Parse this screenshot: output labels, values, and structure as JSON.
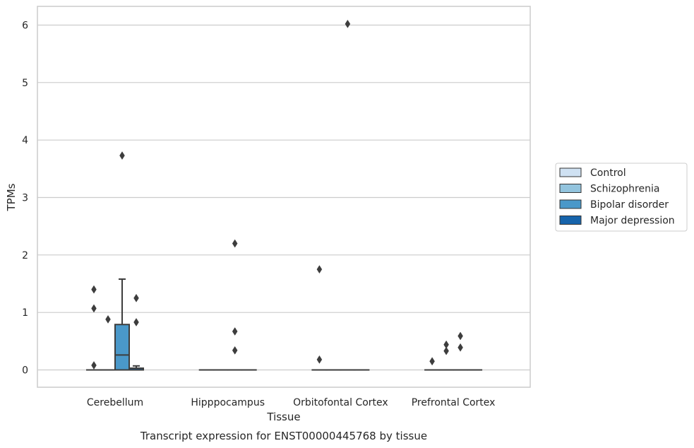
{
  "chart_data": {
    "type": "boxplot",
    "xlabel": "Tissue",
    "ylabel": "TPMs",
    "caption": "Transcript expression for ENST00000445768 by tissue",
    "ylim": [
      -0.3,
      6.33
    ],
    "yticks": [
      0,
      1,
      2,
      3,
      4,
      5,
      6
    ],
    "grid": "horizontal",
    "legend_position": "right",
    "categories": [
      "Cerebellum",
      "Hipppocampus",
      "Orbitofontal Cortex",
      "Prefrontal Cortex"
    ],
    "series": [
      {
        "name": "Control",
        "color": "#cfe1f2"
      },
      {
        "name": "Schizophrenia",
        "color": "#93c4de"
      },
      {
        "name": "Bipolar disorder",
        "color": "#4a98c9"
      },
      {
        "name": "Major depression",
        "color": "#1764ab"
      }
    ],
    "boxes": [
      [
        {
          "q1": 0,
          "median": 0,
          "q3": 0,
          "whislo": 0,
          "whishi": 0,
          "fliers": [
            0.08,
            1.07,
            1.4
          ]
        },
        {
          "q1": 0,
          "median": 0,
          "q3": 0,
          "whislo": 0,
          "whishi": 0,
          "fliers": [
            0.88
          ]
        },
        {
          "q1": 0,
          "median": 0.26,
          "q3": 0.79,
          "whislo": 0,
          "whishi": 1.58,
          "fliers": [
            3.73
          ]
        },
        {
          "q1": 0,
          "median": 0,
          "q3": 0.03,
          "whislo": 0,
          "whishi": 0.07,
          "fliers": [
            0.83,
            1.25
          ]
        }
      ],
      [
        {
          "q1": 0,
          "median": 0,
          "q3": 0,
          "whislo": 0,
          "whishi": 0,
          "fliers": []
        },
        {
          "q1": 0,
          "median": 0,
          "q3": 0,
          "whislo": 0,
          "whishi": 0,
          "fliers": []
        },
        {
          "q1": 0,
          "median": 0,
          "q3": 0,
          "whislo": 0,
          "whishi": 0,
          "fliers": [
            0.34,
            0.67,
            2.2
          ]
        },
        {
          "q1": 0,
          "median": 0,
          "q3": 0,
          "whislo": 0,
          "whishi": 0,
          "fliers": []
        }
      ],
      [
        {
          "q1": 0,
          "median": 0,
          "q3": 0,
          "whislo": 0,
          "whishi": 0,
          "fliers": [
            0.18,
            1.75
          ]
        },
        {
          "q1": 0,
          "median": 0,
          "q3": 0,
          "whislo": 0,
          "whishi": 0,
          "fliers": []
        },
        {
          "q1": 0,
          "median": 0,
          "q3": 0,
          "whislo": 0,
          "whishi": 0,
          "fliers": [
            6.02
          ]
        },
        {
          "q1": 0,
          "median": 0,
          "q3": 0,
          "whislo": 0,
          "whishi": 0,
          "fliers": []
        }
      ],
      [
        {
          "q1": 0,
          "median": 0,
          "q3": 0,
          "whislo": 0,
          "whishi": 0,
          "fliers": [
            0.15
          ]
        },
        {
          "q1": 0,
          "median": 0,
          "q3": 0,
          "whislo": 0,
          "whishi": 0,
          "fliers": [
            0.33,
            0.44
          ]
        },
        {
          "q1": 0,
          "median": 0,
          "q3": 0,
          "whislo": 0,
          "whishi": 0,
          "fliers": [
            0.39,
            0.59
          ]
        },
        {
          "q1": 0,
          "median": 0,
          "q3": 0,
          "whislo": 0,
          "whishi": 0,
          "fliers": []
        }
      ]
    ]
  }
}
